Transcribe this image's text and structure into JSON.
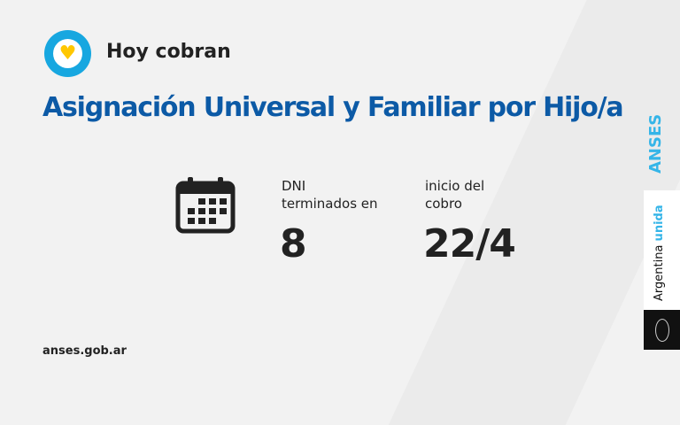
{
  "header": {
    "subtitle": "Hoy cobran",
    "title": "Asignación Universal y Familiar por Hijo/a",
    "logo_icon": "heart-icon"
  },
  "info": {
    "dni_label": [
      "DNI",
      "terminados en"
    ],
    "dni_value": "8",
    "date_label": [
      "inicio del",
      "cobro"
    ],
    "date_value": "22/4",
    "icon": "calendar-icon"
  },
  "footer": {
    "url": "anses.gob.ar"
  },
  "brand": {
    "anses": "ANSES",
    "argentina": "Argentina",
    "unida": "unida",
    "seal_icon": "coat-of-arms-icon"
  },
  "colors": {
    "blue": "#0c5aa6",
    "light_blue": "#17a7e0",
    "yellow": "#ffc700"
  }
}
